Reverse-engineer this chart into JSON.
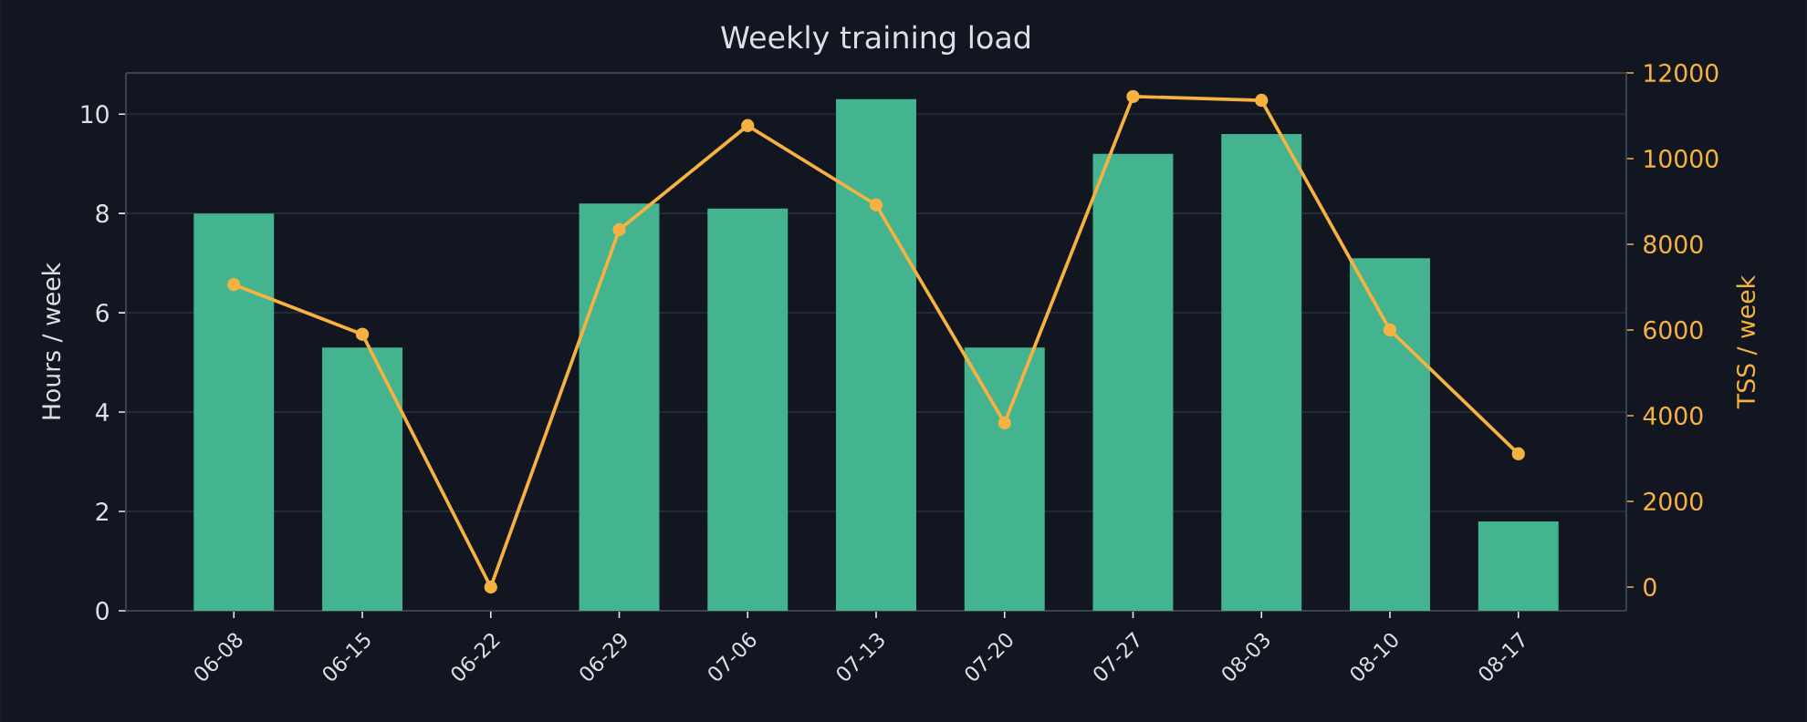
{
  "chart_data": {
    "type": "bar",
    "title": "Weekly training load",
    "ylabel": "Hours / week",
    "y2label": "TSS / week",
    "categories": [
      "06-08",
      "06-15",
      "06-22",
      "06-29",
      "07-06",
      "07-13",
      "07-20",
      "07-27",
      "08-03",
      "08-10",
      "08-17"
    ],
    "series": [
      {
        "color": "#43b48f",
        "values": [
          8.0,
          5.3,
          0,
          8.2,
          8.1,
          10.3,
          5.3,
          9.2,
          9.6,
          7.1,
          1.8
        ]
      },
      {
        "type": "line",
        "axis": "y2",
        "color": "#f5b142",
        "marker": "circle",
        "values": [
          7060,
          5900,
          0,
          8340,
          10770,
          8920,
          3830,
          11450,
          11360,
          6000,
          3110
        ]
      }
    ],
    "ylim": [
      0,
      10.83
    ],
    "yticks": [
      0,
      2,
      4,
      6,
      8,
      10
    ],
    "y2lim": [
      -553,
      12000
    ],
    "y2ticks": [
      0,
      2000,
      4000,
      6000,
      8000,
      10000,
      12000
    ],
    "grid": "y"
  }
}
